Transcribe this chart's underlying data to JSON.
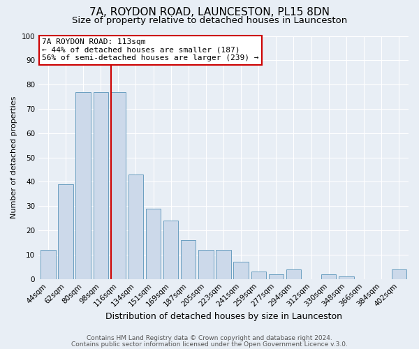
{
  "title": "7A, ROYDON ROAD, LAUNCESTON, PL15 8DN",
  "subtitle": "Size of property relative to detached houses in Launceston",
  "xlabel": "Distribution of detached houses by size in Launceston",
  "ylabel": "Number of detached properties",
  "bar_labels": [
    "44sqm",
    "62sqm",
    "80sqm",
    "98sqm",
    "116sqm",
    "134sqm",
    "151sqm",
    "169sqm",
    "187sqm",
    "205sqm",
    "223sqm",
    "241sqm",
    "259sqm",
    "277sqm",
    "294sqm",
    "312sqm",
    "330sqm",
    "348sqm",
    "366sqm",
    "384sqm",
    "402sqm"
  ],
  "bar_values": [
    12,
    39,
    77,
    77,
    77,
    43,
    29,
    24,
    16,
    12,
    12,
    7,
    3,
    2,
    4,
    0,
    2,
    1,
    0,
    0,
    4
  ],
  "bar_color": "#ccd9ea",
  "bar_edge_color": "#6a9ec0",
  "vline_index": 4,
  "vline_color": "#cc0000",
  "annotation_title": "7A ROYDON ROAD: 113sqm",
  "annotation_line1": "← 44% of detached houses are smaller (187)",
  "annotation_line2": "56% of semi-detached houses are larger (239) →",
  "annotation_box_color": "#cc0000",
  "ylim": [
    0,
    100
  ],
  "yticks": [
    0,
    10,
    20,
    30,
    40,
    50,
    60,
    70,
    80,
    90,
    100
  ],
  "footer1": "Contains HM Land Registry data © Crown copyright and database right 2024.",
  "footer2": "Contains public sector information licensed under the Open Government Licence v.3.0.",
  "fig_bg_color": "#e8eef5",
  "plot_bg_color": "#e8eef5",
  "grid_color": "#ffffff",
  "title_fontsize": 11,
  "subtitle_fontsize": 9.5,
  "xlabel_fontsize": 9,
  "ylabel_fontsize": 8,
  "tick_fontsize": 7.5,
  "annotation_fontsize": 8,
  "footer_fontsize": 6.5
}
